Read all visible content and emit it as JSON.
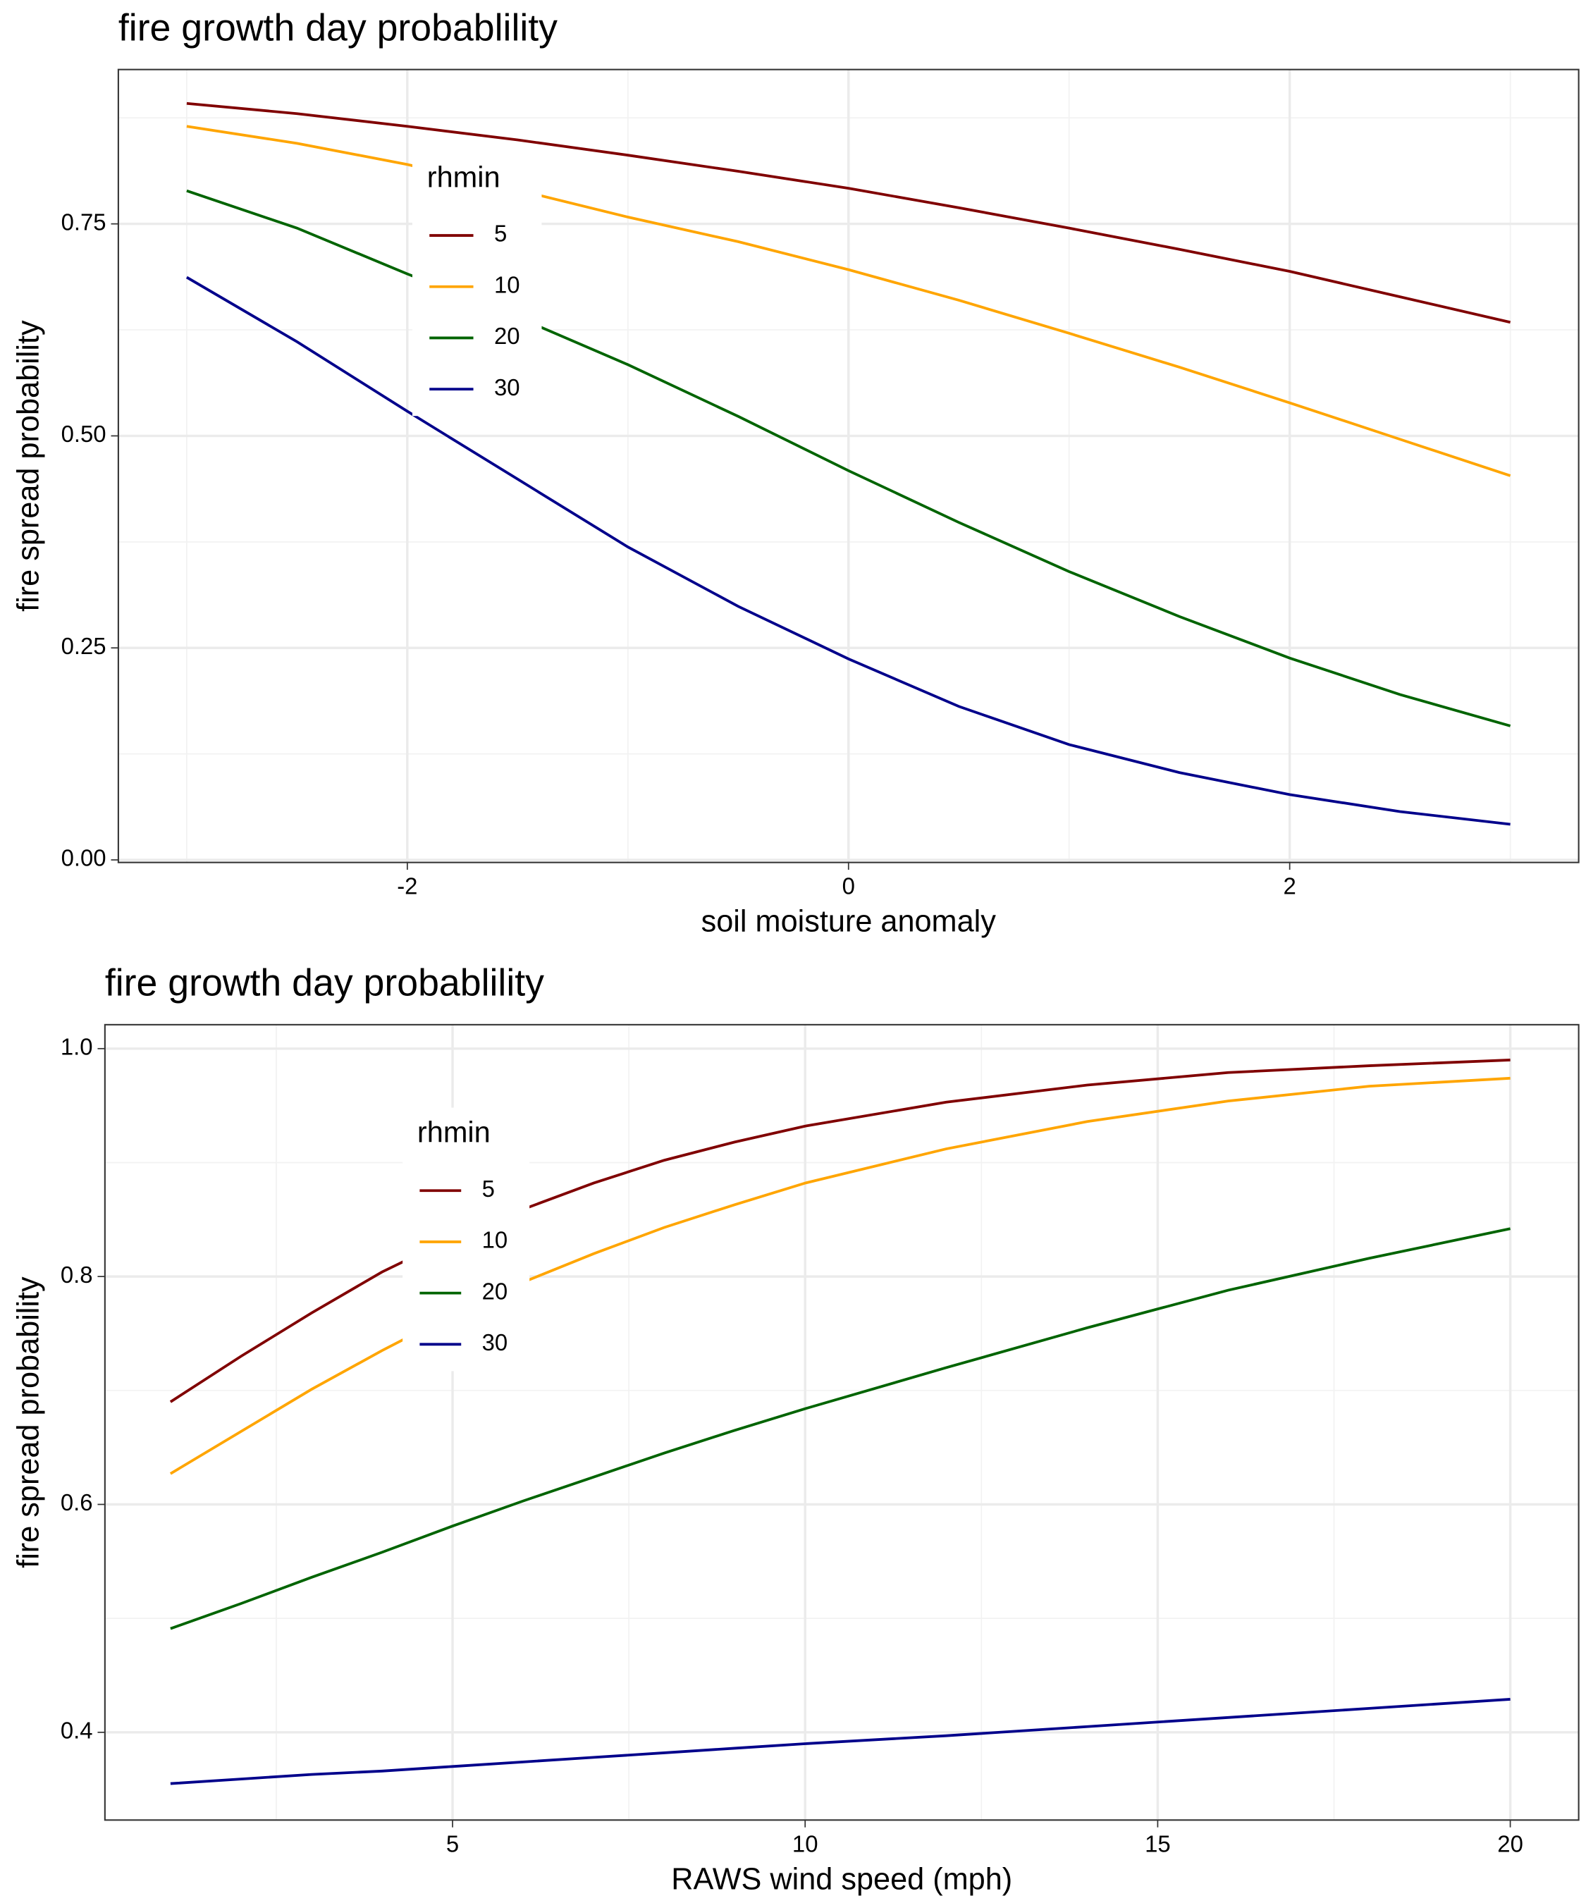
{
  "chart_data": [
    {
      "type": "line",
      "title": "fire growth day probablility",
      "x_label": "soil moisture anomaly",
      "y_label": "fire spread probability",
      "x": [
        -3,
        -2.5,
        -2,
        -1.5,
        -1,
        -0.5,
        0,
        0.5,
        1,
        1.5,
        2,
        2.5,
        3
      ],
      "series": [
        {
          "name": "5",
          "color": "#800000",
          "values": [
            0.892,
            0.88,
            0.865,
            0.849,
            0.831,
            0.812,
            0.792,
            0.769,
            0.745,
            0.72,
            0.694,
            0.664,
            0.634
          ]
        },
        {
          "name": "10",
          "color": "#ffa500",
          "values": [
            0.865,
            0.845,
            0.82,
            0.79,
            0.758,
            0.729,
            0.696,
            0.66,
            0.621,
            0.581,
            0.539,
            0.496,
            0.453
          ]
        },
        {
          "name": "20",
          "color": "#006400",
          "values": [
            0.789,
            0.745,
            0.691,
            0.64,
            0.584,
            0.523,
            0.459,
            0.398,
            0.34,
            0.287,
            0.238,
            0.195,
            0.158
          ]
        },
        {
          "name": "30",
          "color": "#00008b",
          "values": [
            0.687,
            0.611,
            0.529,
            0.449,
            0.369,
            0.299,
            0.237,
            0.181,
            0.136,
            0.103,
            0.077,
            0.057,
            0.042
          ]
        }
      ],
      "legend_title": "rhmin",
      "legend_position": "inside",
      "xlim": [
        -3.31,
        3.31
      ],
      "ylim": [
        -0.003,
        0.932
      ],
      "xticks": [
        -2,
        0,
        2
      ],
      "yticks": [
        {
          "value": 0,
          "label": "0.00"
        },
        0.25,
        {
          "value": 0.5,
          "label": "0.50"
        },
        0.75
      ],
      "x_minor_ticks": [
        -3,
        -1,
        1,
        3
      ],
      "y_minor_ticks": [
        0.125,
        0.375,
        0.625,
        0.875
      ],
      "grid": true
    },
    {
      "type": "line",
      "title": "fire growth day probablility",
      "x_label": "RAWS wind speed (mph)",
      "y_label": "fire spread probability",
      "x": [
        1,
        2,
        3,
        4,
        5,
        6,
        7,
        8,
        9,
        10,
        12,
        14,
        16,
        18,
        20
      ],
      "series": [
        {
          "name": "5",
          "color": "#800000",
          "values": [
            0.69,
            0.73,
            0.768,
            0.804,
            0.834,
            0.859,
            0.882,
            0.902,
            0.918,
            0.932,
            0.953,
            0.968,
            0.979,
            0.985,
            0.99
          ]
        },
        {
          "name": "10",
          "color": "#ffa500",
          "values": [
            0.627,
            0.664,
            0.701,
            0.735,
            0.767,
            0.795,
            0.82,
            0.843,
            0.863,
            0.882,
            0.912,
            0.936,
            0.954,
            0.967,
            0.974
          ]
        },
        {
          "name": "20",
          "color": "#006400",
          "values": [
            0.491,
            0.513,
            0.536,
            0.558,
            0.581,
            0.603,
            0.624,
            0.645,
            0.665,
            0.684,
            0.72,
            0.755,
            0.788,
            0.816,
            0.842
          ]
        },
        {
          "name": "30",
          "color": "#00008b",
          "values": [
            0.355,
            0.359,
            0.363,
            0.366,
            0.37,
            0.374,
            0.378,
            0.382,
            0.386,
            0.39,
            0.397,
            0.405,
            0.413,
            0.421,
            0.429
          ]
        }
      ],
      "legend_title": "rhmin",
      "legend_position": "inside",
      "xlim": [
        0.07,
        20.97
      ],
      "ylim": [
        0.323,
        1.021
      ],
      "xticks": [
        5,
        10,
        15,
        20
      ],
      "yticks": [
        0.4,
        0.6,
        0.8,
        {
          "value": 1,
          "label": "1.0"
        }
      ],
      "x_minor_ticks": [
        2.5,
        7.5,
        12.5,
        17.5
      ],
      "y_minor_ticks": [
        0.5,
        0.7,
        0.9
      ],
      "grid": true
    }
  ]
}
